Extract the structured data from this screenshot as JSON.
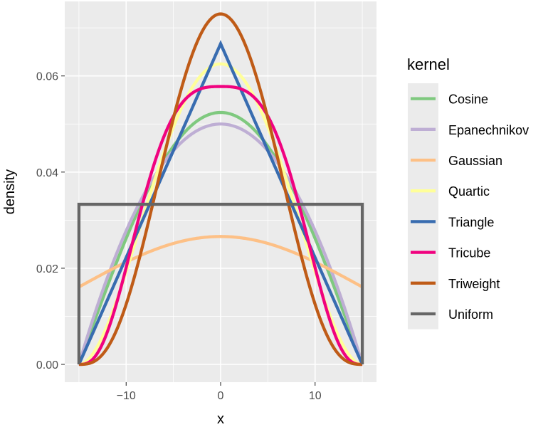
{
  "chart_data": {
    "type": "line",
    "xlabel": "x",
    "ylabel": "density",
    "xlim": [
      -16.5,
      16.5
    ],
    "ylim": [
      -0.0037,
      0.0755
    ],
    "x_ticks": [
      -10,
      0,
      10
    ],
    "x_tick_labels": [
      "−10",
      "0",
      "10"
    ],
    "y_ticks": [
      0.0,
      0.02,
      0.04,
      0.06
    ],
    "y_tick_labels": [
      "0.00",
      "0.02",
      "0.04",
      "0.06"
    ],
    "grid": true,
    "legend_title": "kernel",
    "legend_position": "right",
    "support": [
      -15,
      15
    ],
    "series": [
      {
        "name": "Cosine",
        "color": "#7fc97f",
        "peak": 0.0524
      },
      {
        "name": "Epanechnikov",
        "color": "#beaed4",
        "peak": 0.05
      },
      {
        "name": "Gaussian",
        "color": "#fdc086",
        "peak": 0.0266,
        "value_at_edge": 0.0161
      },
      {
        "name": "Quartic",
        "color": "#ffff99",
        "peak": 0.0625
      },
      {
        "name": "Triangle",
        "color": "#386cb0",
        "peak": 0.0667
      },
      {
        "name": "Tricube",
        "color": "#f0027f",
        "peak": 0.0578
      },
      {
        "name": "Triweight",
        "color": "#bf5b17",
        "peak": 0.0729
      },
      {
        "name": "Uniform",
        "color": "#666666",
        "peak": 0.0333
      }
    ]
  }
}
